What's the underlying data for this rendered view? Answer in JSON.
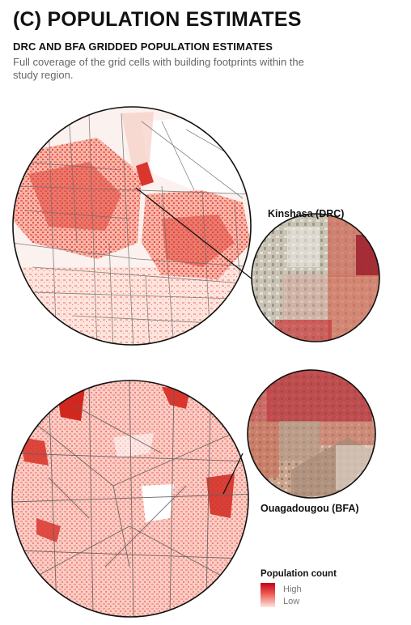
{
  "header": {
    "title": "(C) POPULATION ESTIMATES",
    "subtitle": "DRC AND BFA GRIDDED POPULATION ESTIMATES",
    "description": "Full coverage of the grid cells with building footprints within the study region."
  },
  "maps": {
    "kinshasa_label": "Kinshasa (DRC)",
    "ouagadougou_label": "Ouagadougou (BFA)"
  },
  "legend": {
    "title": "Population count",
    "high": "High",
    "low": "Low",
    "high_color": "#c4001a",
    "low_color": "#fde6df"
  },
  "colors": {
    "outline": "#111111",
    "boundary": "#6f6f6f",
    "density_light": "#f7b3a6",
    "density_mid": "#ee6a5b",
    "density_dark": "#c8241f"
  }
}
